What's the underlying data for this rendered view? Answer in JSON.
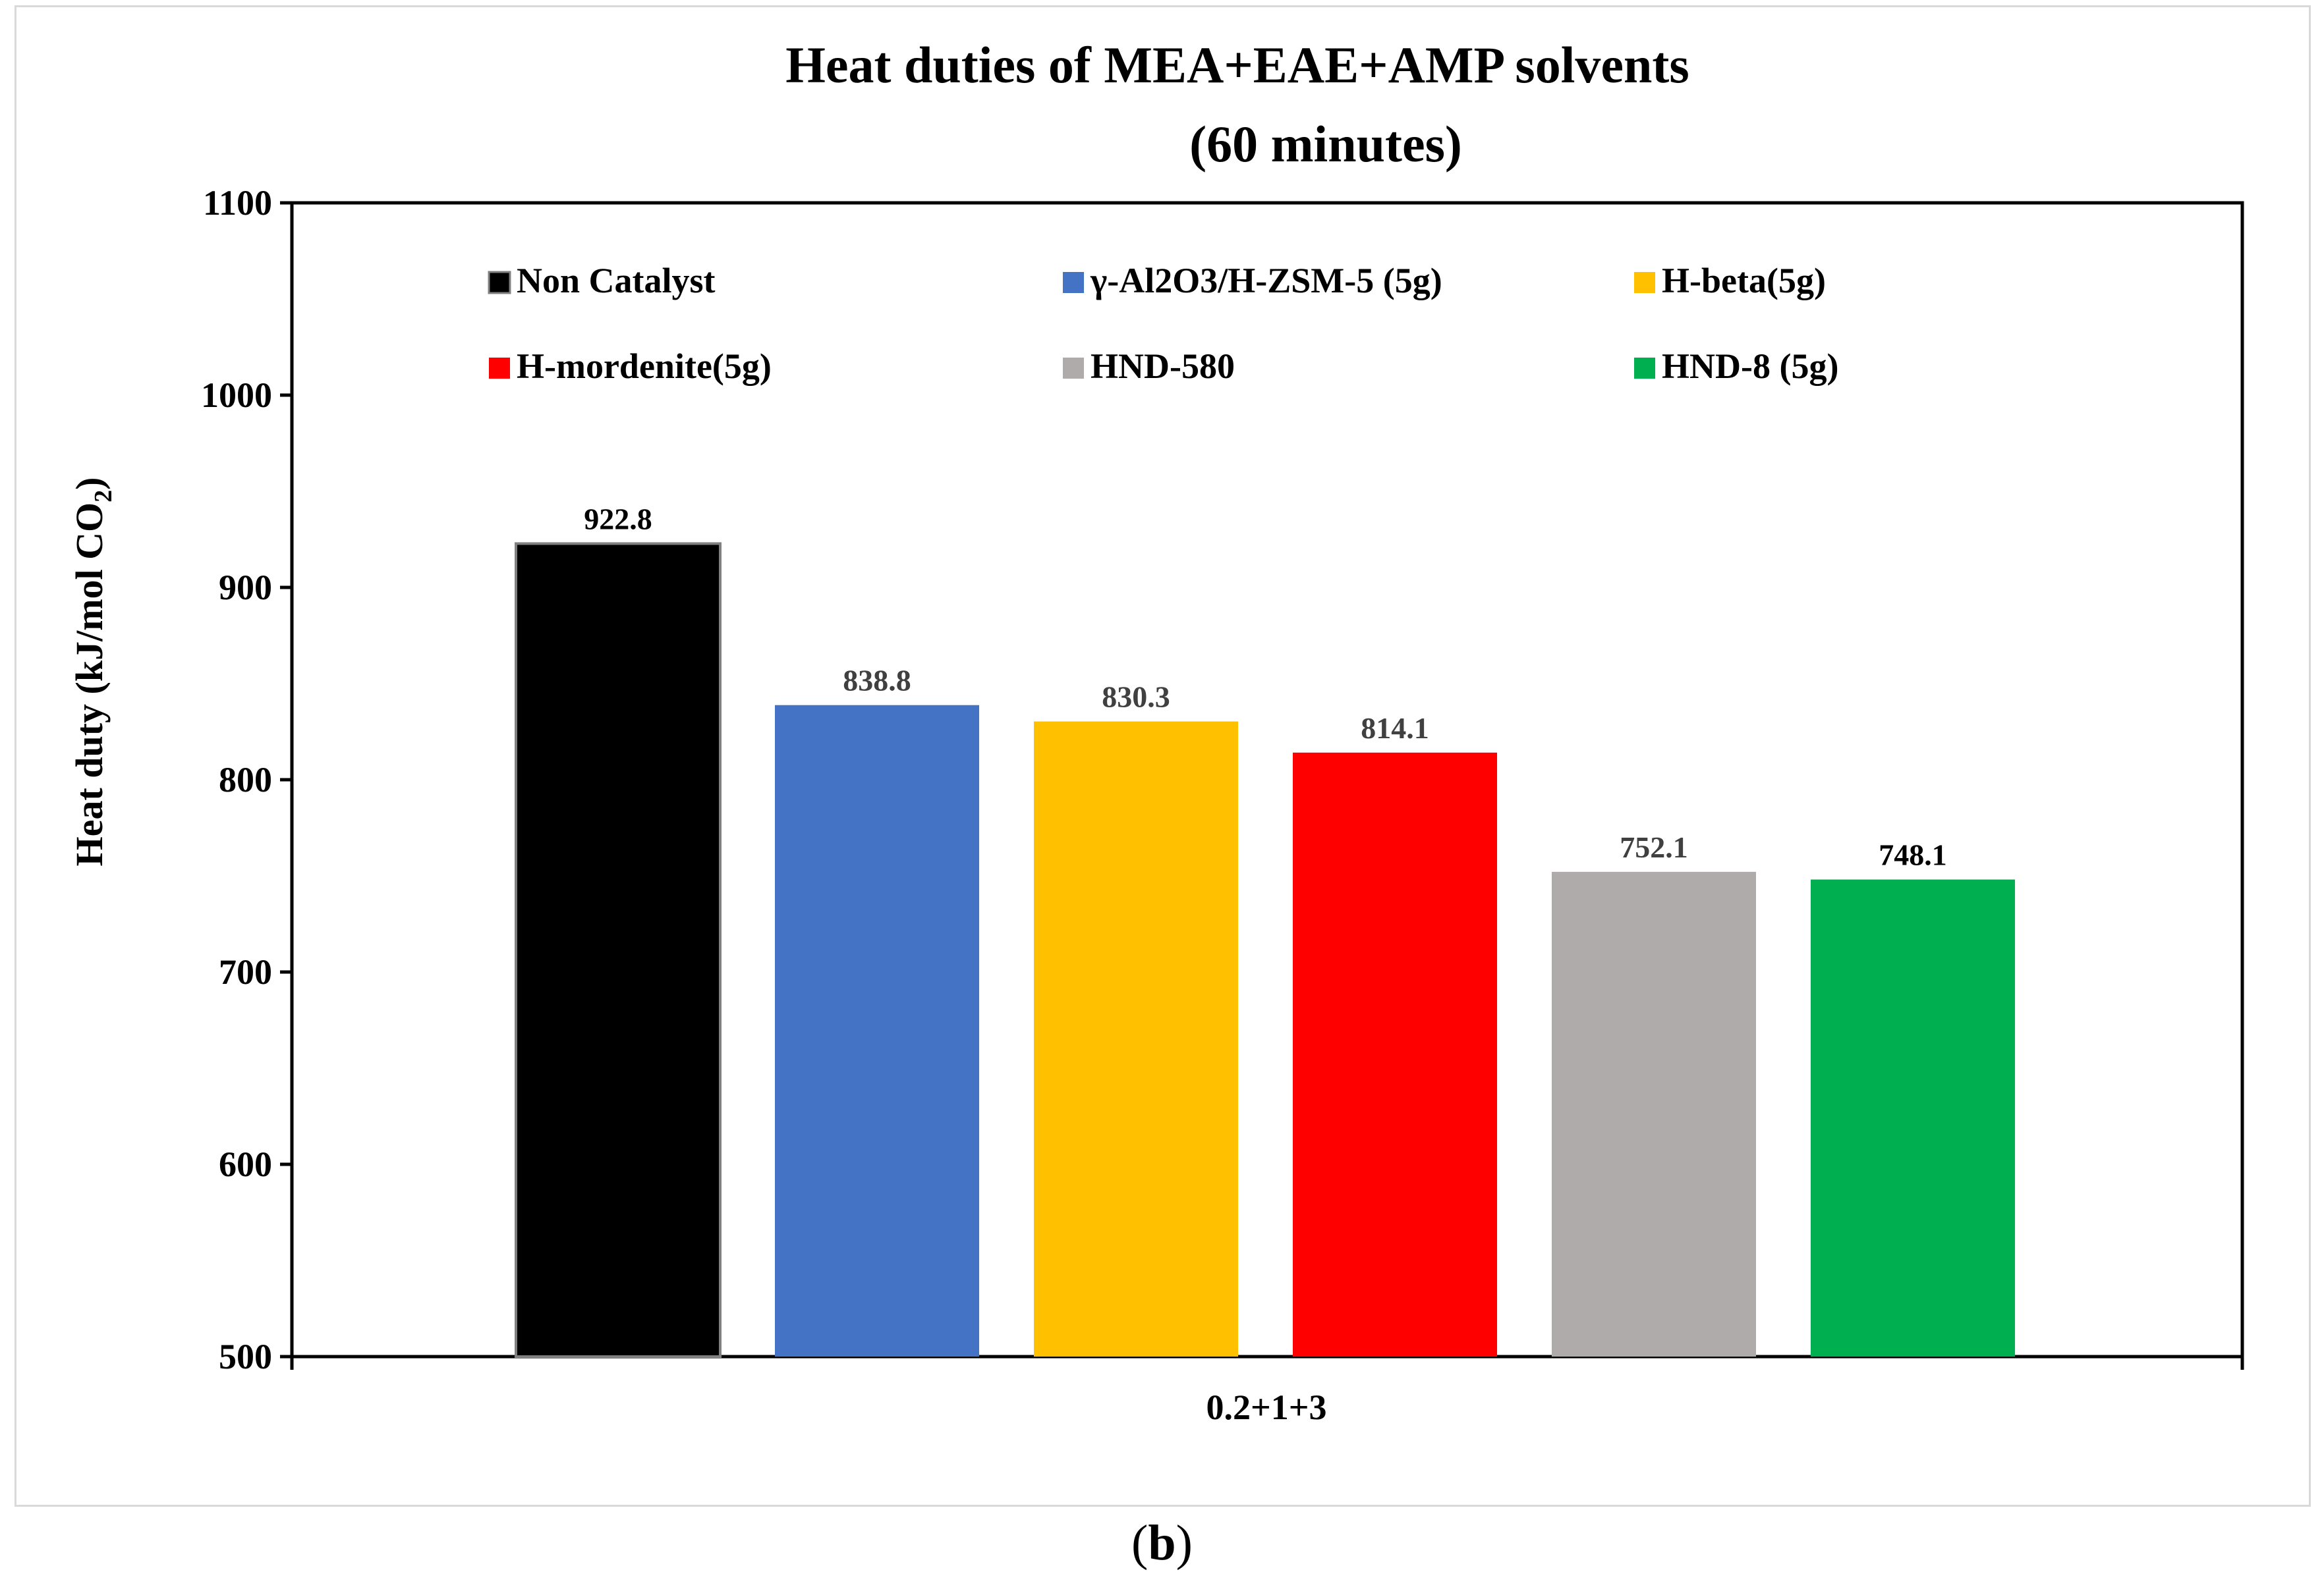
{
  "chart_data": {
    "type": "bar",
    "title_line1": "Heat duties of MEA+EAE+AMP solvents",
    "title_line2": "(60 minutes)",
    "ylabel_main": "Heat  duty (kJ/mol CO",
    "ylabel_sub": "2",
    "ylabel_close": ")",
    "xlabel": "0.2+1+3",
    "ylim": [
      500,
      1100
    ],
    "yticks": [
      500,
      600,
      700,
      800,
      900,
      1000,
      1100
    ],
    "grid": false,
    "legend_position": "top",
    "series": [
      {
        "name": "Non Catalyst",
        "value": 922.8,
        "label": "922.8",
        "color": "#000000"
      },
      {
        "name": "γ-Al2O3/H-ZSM-5 (5g)",
        "value": 838.8,
        "label": "838.8",
        "color": "#4472c4"
      },
      {
        "name": "H-beta(5g)",
        "value": 830.3,
        "label": "830.3",
        "color": "#ffc000"
      },
      {
        "name": "H-mordenite(5g)",
        "value": 814.1,
        "label": "814.1",
        "color": "#ff0000"
      },
      {
        "name": "HND-580",
        "value": 752.1,
        "label": "752.1",
        "color": "#afabab"
      },
      {
        "name": "HND-8 (5g)",
        "value": 748.1,
        "label": "748.1",
        "color": "#00b050"
      }
    ]
  },
  "caption": {
    "open": "(",
    "letter": "b",
    "close": ")"
  }
}
